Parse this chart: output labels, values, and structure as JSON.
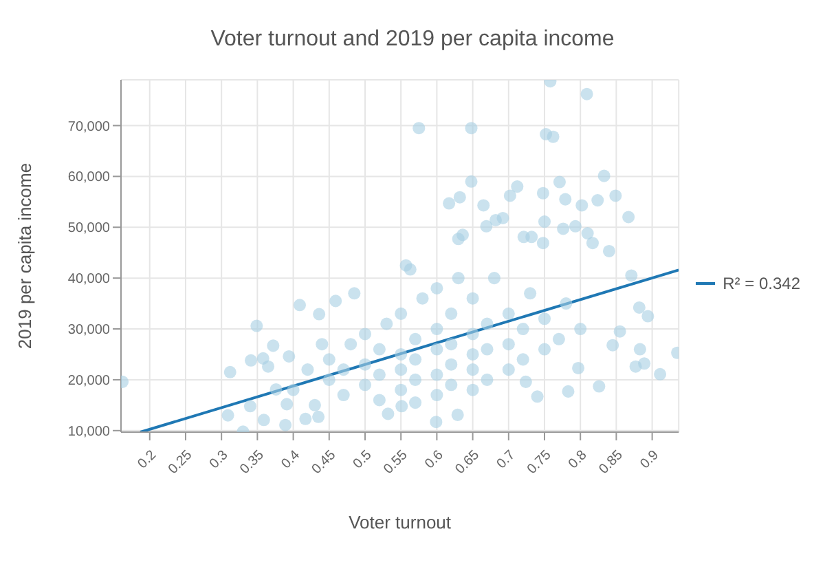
{
  "chart_data": {
    "type": "scatter",
    "title": "Voter turnout and 2019 per capita income",
    "xlabel": "Voter turnout",
    "ylabel": "2019 per capita income",
    "xlim": [
      0.16,
      0.937
    ],
    "xticks": [
      0.2,
      0.25,
      0.3,
      0.35,
      0.4,
      0.45,
      0.5,
      0.55,
      0.6,
      0.65,
      0.7,
      0.75,
      0.8,
      0.85,
      0.9
    ],
    "ylim": [
      9700,
      79000
    ],
    "yticks": [
      {
        "value": 10000,
        "label": "10,000"
      },
      {
        "value": 20000,
        "label": "20,000"
      },
      {
        "value": 30000,
        "label": "30,000"
      },
      {
        "value": 40000,
        "label": "40,000"
      },
      {
        "value": 50000,
        "label": "50,000"
      },
      {
        "value": 60000,
        "label": "60,000"
      },
      {
        "value": 70000,
        "label": "70,000"
      }
    ],
    "grid": true,
    "legend": "right",
    "series": [
      {
        "marker": "circle",
        "color": "#a6cee3",
        "x": [
          0.758,
          0.809,
          0.575,
          0.648,
          0.752,
          0.762,
          0.648,
          0.833,
          0.849,
          0.867,
          0.632,
          0.617,
          0.712,
          0.702,
          0.748,
          0.771,
          0.779,
          0.802,
          0.824,
          0.665,
          0.692,
          0.682,
          0.669,
          0.75,
          0.793,
          0.776,
          0.81,
          0.636,
          0.63,
          0.721,
          0.732,
          0.84,
          0.817,
          0.748,
          0.935,
          0.911,
          0.889,
          0.877,
          0.883,
          0.894,
          0.882,
          0.871,
          0.855,
          0.845,
          0.826,
          0.797,
          0.783,
          0.74,
          0.724,
          0.599,
          0.629,
          0.162,
          0.349,
          0.33,
          0.309,
          0.312,
          0.341,
          0.358,
          0.372,
          0.34,
          0.359,
          0.389,
          0.409,
          0.436,
          0.459,
          0.485,
          0.417,
          0.435,
          0.391,
          0.376,
          0.365,
          0.394,
          0.557,
          0.563,
          0.532,
          0.551,
          0.45,
          0.45,
          0.47,
          0.47,
          0.48,
          0.5,
          0.5,
          0.5,
          0.52,
          0.52,
          0.52,
          0.53,
          0.55,
          0.55,
          0.55,
          0.55,
          0.57,
          0.57,
          0.57,
          0.57,
          0.58,
          0.6,
          0.6,
          0.6,
          0.6,
          0.6,
          0.62,
          0.62,
          0.62,
          0.62,
          0.63,
          0.65,
          0.65,
          0.65,
          0.65,
          0.65,
          0.67,
          0.67,
          0.67,
          0.68,
          0.7,
          0.7,
          0.7,
          0.72,
          0.72,
          0.73,
          0.75,
          0.75,
          0.77,
          0.78,
          0.8,
          0.4,
          0.42,
          0.43,
          0.44
        ],
        "values": [
          78700,
          76200,
          69500,
          69500,
          68300,
          67800,
          59000,
          60100,
          56200,
          52000,
          55900,
          54700,
          58000,
          56200,
          56700,
          58900,
          55500,
          54300,
          55300,
          54300,
          51800,
          51400,
          50200,
          51100,
          50200,
          49700,
          48800,
          48500,
          47700,
          48100,
          48100,
          45300,
          46900,
          46900,
          25300,
          21100,
          23200,
          22600,
          26000,
          32500,
          34200,
          40500,
          29500,
          26800,
          18700,
          22300,
          17700,
          16700,
          19600,
          11700,
          13100,
          19600,
          30600,
          9800,
          13000,
          21500,
          23800,
          24200,
          26700,
          14800,
          12100,
          11100,
          34700,
          32900,
          35500,
          37000,
          12300,
          12700,
          15200,
          18100,
          22600,
          24600,
          42500,
          41700,
          13300,
          14800,
          20000,
          24000,
          17000,
          22000,
          27000,
          19000,
          23000,
          29000,
          16000,
          21000,
          26000,
          31000,
          18000,
          22000,
          25000,
          33000,
          15500,
          20000,
          24000,
          28000,
          36000,
          17000,
          21000,
          26000,
          30000,
          38000,
          19000,
          23000,
          27000,
          33000,
          40000,
          18000,
          22000,
          25000,
          29000,
          36000,
          20000,
          26000,
          31000,
          40000,
          22000,
          27000,
          33000,
          24000,
          30000,
          37000,
          26000,
          32000,
          28000,
          35000,
          30000,
          18000,
          22000,
          15000,
          27000
        ]
      },
      {
        "type": "line",
        "name": "R² = 0.342",
        "color": "#1f78b4",
        "x": [
          0.187,
          0.937
        ],
        "values": [
          9700,
          41600
        ]
      }
    ]
  }
}
